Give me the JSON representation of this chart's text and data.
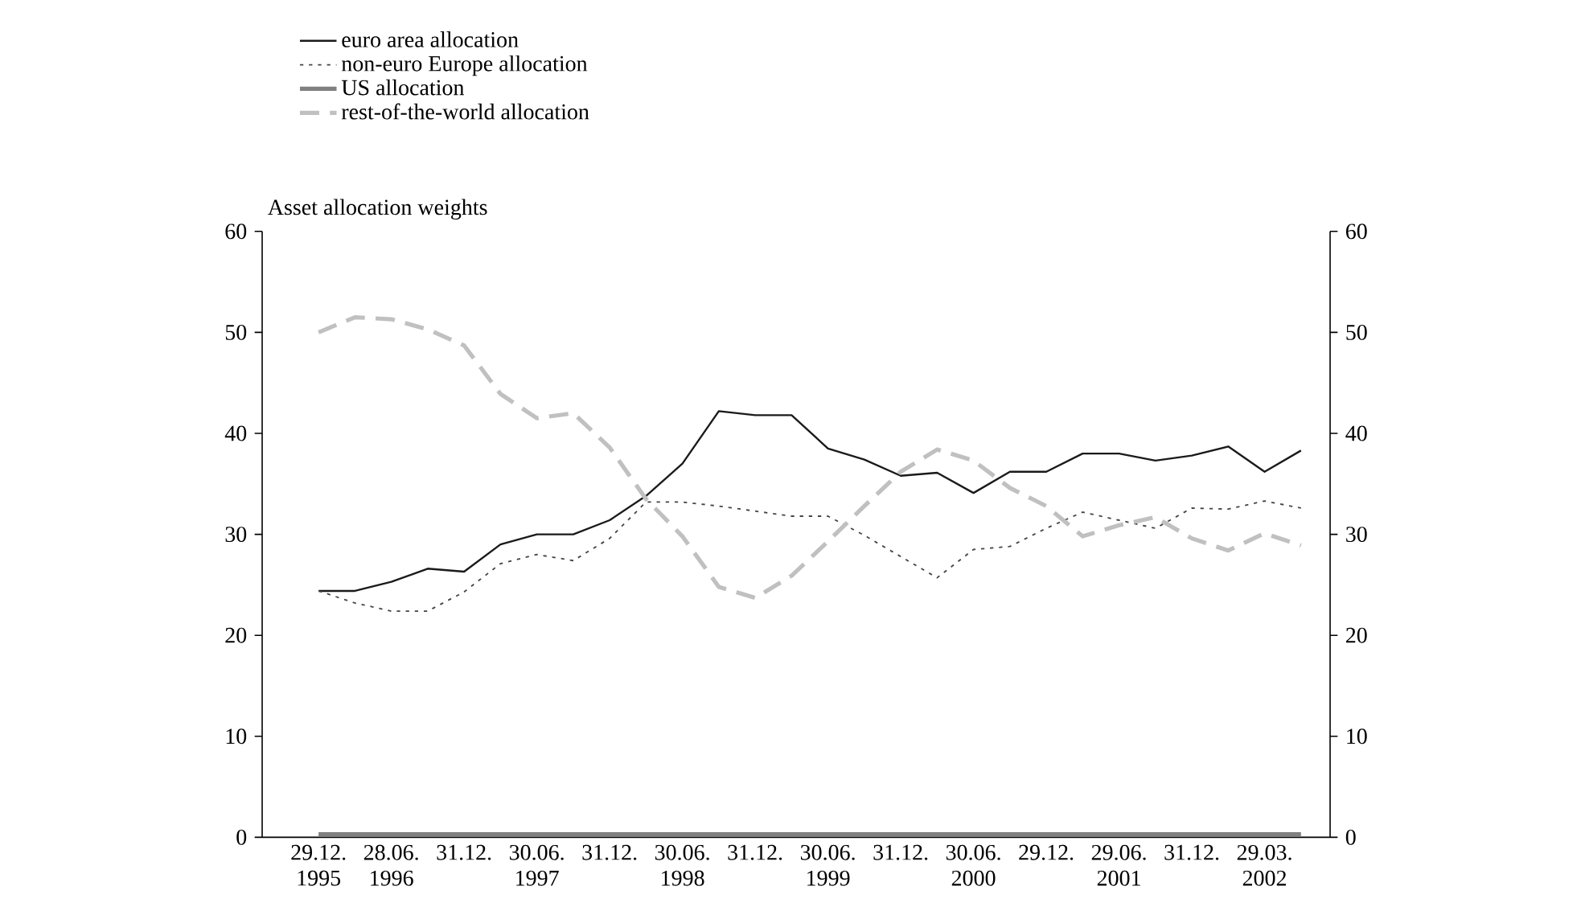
{
  "chart_data": {
    "type": "line",
    "ylabel": "Asset allocation weights",
    "categories": [
      "29.12. 1995",
      null,
      "28.06. 1996",
      null,
      "31.12.",
      null,
      "30.06. 1997",
      null,
      "31.12.",
      null,
      "30.06. 1998",
      null,
      "31.12.",
      null,
      "30.06. 1999",
      null,
      "31.12.",
      null,
      "30.06. 2000",
      null,
      "29.12.",
      null,
      "29.06. 2001",
      null,
      "31.12.",
      null,
      "29.03. 2002",
      null
    ],
    "series": [
      {
        "name": "euro area allocation",
        "color": "#1a1a1a",
        "line_style": "solid",
        "values": [
          24.4,
          24.4,
          25.3,
          26.6,
          26.3,
          29.0,
          30.0,
          30.0,
          31.4,
          33.8,
          37.0,
          42.2,
          41.8,
          41.8,
          38.5,
          37.4,
          35.8,
          36.1,
          34.1,
          36.2,
          36.2,
          38.0,
          38.0,
          37.3,
          37.8,
          38.7,
          36.2,
          38.3
        ]
      },
      {
        "name": "non-euro Europe allocation",
        "color": "#444444",
        "line_style": "dotted",
        "values": [
          24.4,
          23.2,
          22.4,
          22.4,
          24.3,
          27.1,
          28.0,
          27.4,
          29.6,
          33.2,
          33.2,
          32.8,
          32.3,
          31.8,
          31.8,
          29.9,
          27.8,
          25.7,
          28.5,
          28.8,
          30.6,
          32.2,
          31.4,
          30.6,
          32.6,
          32.5,
          33.3,
          32.6
        ]
      },
      {
        "name": "US allocation",
        "color": "#808080",
        "line_style": "solid",
        "values": [
          0.3,
          0.3,
          0.3,
          0.3,
          0.3,
          0.3,
          0.3,
          0.3,
          0.3,
          0.3,
          0.3,
          0.3,
          0.3,
          0.3,
          0.3,
          0.3,
          0.3,
          0.3,
          0.3,
          0.3,
          0.3,
          0.3,
          0.3,
          0.3,
          0.3,
          0.3,
          0.3,
          0.3
        ]
      },
      {
        "name": "rest-of-the-world allocation",
        "color": "#c0c0c0",
        "line_style": "dashed",
        "values": [
          50.0,
          51.5,
          51.3,
          50.3,
          48.7,
          43.9,
          41.5,
          42.0,
          38.6,
          33.5,
          29.8,
          24.8,
          23.7,
          25.9,
          29.3,
          32.8,
          36.2,
          38.4,
          37.3,
          34.6,
          32.8,
          29.8,
          30.9,
          31.7,
          29.6,
          28.4,
          30.1,
          28.9
        ]
      }
    ],
    "ylim": [
      0,
      60
    ],
    "yticks": [
      0,
      10,
      20,
      30,
      40,
      50,
      60
    ],
    "y2lim": [
      0,
      60
    ],
    "y2ticks": [
      0,
      10,
      20,
      30,
      40,
      50,
      60
    ],
    "legend": "top left"
  }
}
